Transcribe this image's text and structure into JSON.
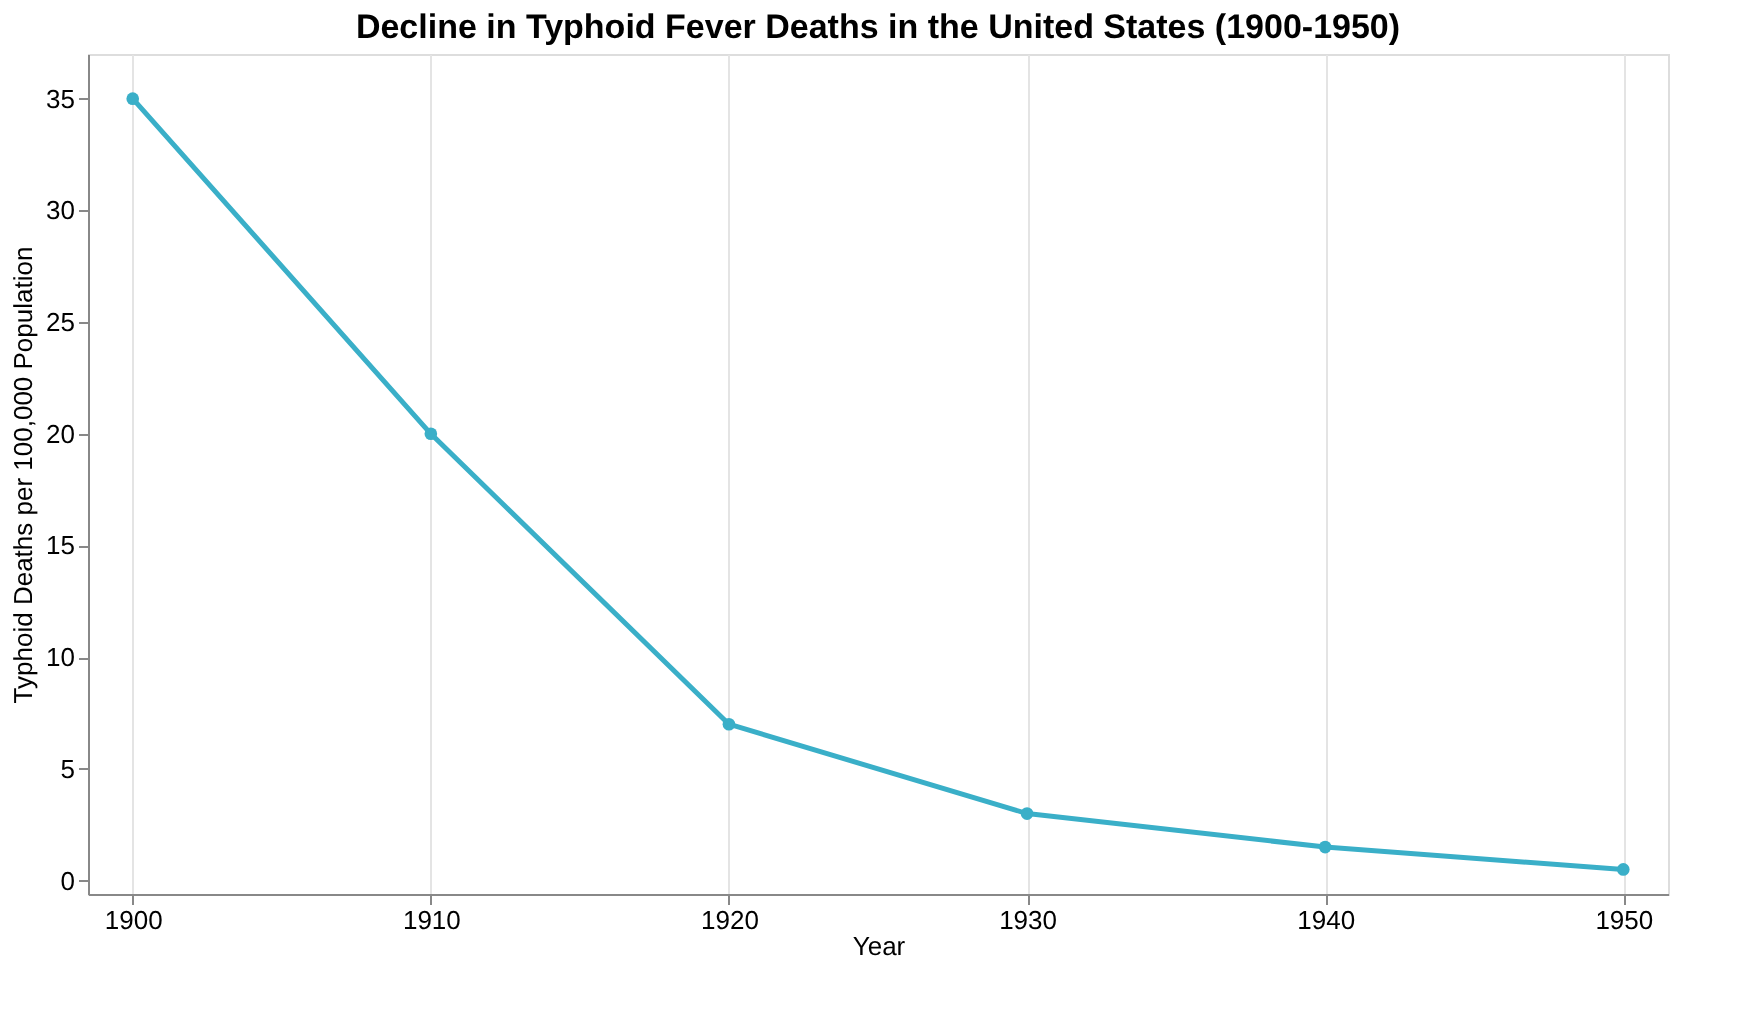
{
  "chart_data": {
    "type": "line",
    "title": "Decline in Typhoid Fever Deaths in the United States (1900-1950)",
    "xlabel": "Year",
    "ylabel": "Typhoid Deaths per 100,000 Population",
    "x": [
      1900,
      1910,
      1920,
      1930,
      1940,
      1950
    ],
    "series": [
      {
        "color": "#3aafc8",
        "values": [
          35,
          20,
          7,
          3,
          1.5,
          0.5
        ]
      }
    ],
    "xlim": [
      1898.5,
      1951.5
    ],
    "xticks": [
      1900,
      1910,
      1920,
      1930,
      1940,
      1950
    ],
    "ylim": [
      -0.6,
      37
    ],
    "yticks": [
      0,
      5,
      10,
      15,
      20,
      25,
      30,
      35
    ],
    "grid": "x",
    "marker": "circle",
    "line_style": "solid",
    "legend": false
  }
}
